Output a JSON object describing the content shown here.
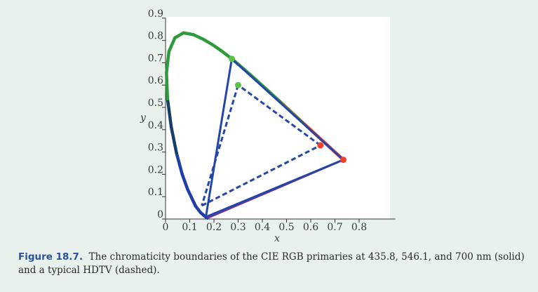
{
  "chart_data": {
    "type": "line",
    "title": "",
    "xlabel": "x",
    "ylabel": "y",
    "xlim": [
      0,
      0.95
    ],
    "ylim": [
      0,
      0.9
    ],
    "xticks": [
      "0",
      "0.1",
      "0.2",
      "0.3",
      "0.4",
      "0.5",
      "0.6",
      "0.7",
      "0.8"
    ],
    "yticks": [
      "0",
      "0.1",
      "0.2",
      "0.3",
      "0.4",
      "0.5",
      "0.6",
      "0.7",
      "0.8",
      "0.9"
    ],
    "grid": false,
    "series": [
      {
        "kind": "spectral-locus",
        "x": [
          0.1741,
          0.1738,
          0.1733,
          0.1726,
          0.1714,
          0.1689,
          0.1644,
          0.1566,
          0.144,
          0.1241,
          0.0913,
          0.0687,
          0.0454,
          0.0235,
          0.0082,
          0.0039,
          0.0139,
          0.0389,
          0.0743,
          0.1142,
          0.1547,
          0.1929,
          0.2296,
          0.2658,
          0.3016,
          0.3373,
          0.3731,
          0.4087,
          0.4441,
          0.4788,
          0.5125,
          0.5448,
          0.5752,
          0.6029,
          0.627,
          0.6482,
          0.6658,
          0.6801,
          0.6915,
          0.7006,
          0.7079,
          0.714,
          0.719,
          0.723,
          0.726,
          0.7283,
          0.73,
          0.7334,
          0.7347
        ],
        "y": [
          0.005,
          0.0049,
          0.0048,
          0.0048,
          0.0051,
          0.0069,
          0.0109,
          0.0177,
          0.0297,
          0.0578,
          0.1327,
          0.2007,
          0.295,
          0.4127,
          0.5384,
          0.6548,
          0.7502,
          0.812,
          0.8338,
          0.8262,
          0.8059,
          0.7816,
          0.7543,
          0.7243,
          0.6923,
          0.6589,
          0.6245,
          0.5896,
          0.5547,
          0.5202,
          0.4866,
          0.4544,
          0.4242,
          0.3965,
          0.3725,
          0.3514,
          0.334,
          0.3197,
          0.3083,
          0.2993,
          0.292,
          0.2859,
          0.2809,
          0.277,
          0.274,
          0.2717,
          0.27,
          0.2666,
          0.2653
        ]
      },
      {
        "name": "",
        "style": "solid",
        "color": "#2346a8",
        "points": [
          {
            "x": 0.7347,
            "y": 0.2653
          },
          {
            "x": 0.2738,
            "y": 0.7174
          },
          {
            "x": 0.1666,
            "y": 0.0089
          }
        ]
      },
      {
        "name": "",
        "style": "dashed",
        "color": "#2346a8",
        "points": [
          {
            "x": 0.64,
            "y": 0.33
          },
          {
            "x": 0.3,
            "y": 0.6
          },
          {
            "x": 0.15,
            "y": 0.06
          }
        ]
      }
    ],
    "primary_markers": [
      {
        "x": 0.7347,
        "y": 0.2653,
        "color": "#f0402a"
      },
      {
        "x": 0.2738,
        "y": 0.7174,
        "color": "#5cc24a"
      },
      {
        "x": 0.64,
        "y": 0.33,
        "color": "#f0402a"
      },
      {
        "x": 0.3,
        "y": 0.6,
        "color": "#5cc24a"
      }
    ],
    "colors": {
      "locus_blue": "#1f3fa6",
      "locus_green": "#2e9a3c",
      "locus_red": "#f0402a",
      "purple_line": "#7a2f8f",
      "background": "#e9f1ec",
      "plot_background": "#ffffff"
    }
  },
  "caption": {
    "number": "Figure 18.7.",
    "text": "The chromaticity boundaries of the CIE RGB primaries at 435.8, 546.1, and 700 nm (solid) and a typical HDTV (dashed)."
  }
}
